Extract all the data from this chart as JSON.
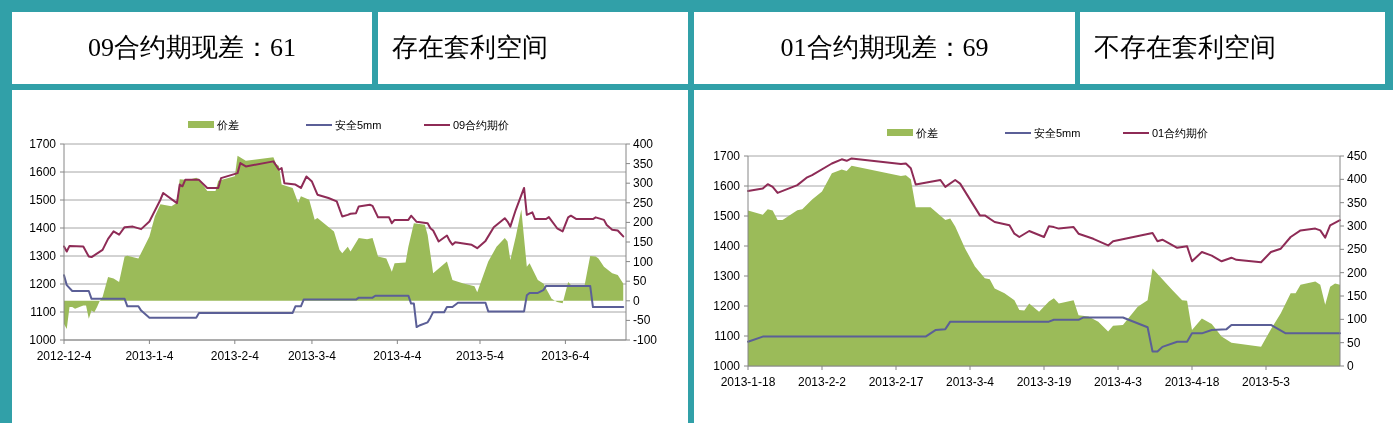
{
  "chart_data": [
    {
      "type": "area",
      "title": "09合约期现差：61",
      "subtitle": "存在套利空间",
      "legend": "top",
      "grid": "y",
      "xlim": [
        "2012-12-04",
        "2013-06-26"
      ],
      "xticks": [
        {
          "value": "2012-12-04",
          "label": "2012-12-4"
        },
        {
          "value": "2013-01-04",
          "label": "2013-1-4"
        },
        {
          "value": "2013-02-04",
          "label": "2013-2-4"
        },
        {
          "value": "2013-03-04",
          "label": "2013-3-4"
        },
        {
          "value": "2013-04-04",
          "label": "2013-4-4"
        },
        {
          "value": "2013-05-04",
          "label": "2013-5-4"
        },
        {
          "value": "2013-06-04",
          "label": "2013-6-4"
        }
      ],
      "ylim": [
        1000,
        1700
      ],
      "yticks": [
        1000,
        1100,
        1200,
        1300,
        1400,
        1500,
        1600,
        1700
      ],
      "y2lim": [
        -100,
        400
      ],
      "y2ticks": [
        -100,
        -50,
        0,
        50,
        100,
        150,
        200,
        250,
        300,
        350,
        400
      ],
      "series": [
        {
          "name": "价差",
          "axis": "y2",
          "color": "#9bbb59",
          "x": [
            "2012-12-04",
            "2012-12-05",
            "2012-12-06",
            "2012-12-07",
            "2012-12-08",
            "2012-12-11",
            "2012-12-12",
            "2012-12-13",
            "2012-12-14",
            "2012-12-15",
            "2012-12-16",
            "2012-12-17",
            "2012-12-18",
            "2012-12-20",
            "2012-12-22",
            "2012-12-24",
            "2012-12-26",
            "2012-12-27",
            "2012-12-31",
            "2013-01-04",
            "2013-01-06",
            "2013-01-08",
            "2013-01-12",
            "2013-01-14",
            "2013-01-15",
            "2013-01-18",
            "2013-01-21",
            "2013-01-22",
            "2013-01-25",
            "2013-01-28",
            "2013-01-29",
            "2013-02-04",
            "2013-02-05",
            "2013-02-08",
            "2013-02-18",
            "2013-02-19",
            "2013-02-20",
            "2013-02-21",
            "2013-02-25",
            "2013-02-27",
            "2013-02-28",
            "2013-03-03",
            "2013-03-05",
            "2013-03-06",
            "2013-03-12",
            "2013-03-14",
            "2013-03-15",
            "2013-03-17",
            "2013-03-18",
            "2013-03-21",
            "2013-03-24",
            "2013-03-26",
            "2013-03-28",
            "2013-03-31",
            "2013-04-02",
            "2013-04-03",
            "2013-04-07",
            "2013-04-08",
            "2013-04-10",
            "2013-04-14",
            "2013-04-15",
            "2013-04-17",
            "2013-04-22",
            "2013-04-24",
            "2013-04-28",
            "2013-05-02",
            "2013-05-03",
            "2013-05-07",
            "2013-05-10",
            "2013-05-13",
            "2013-05-14",
            "2013-05-15",
            "2013-05-17",
            "2013-05-19",
            "2013-05-21",
            "2013-05-22",
            "2013-05-25",
            "2013-05-27",
            "2013-05-30",
            "2013-06-01",
            "2013-06-03",
            "2013-06-05",
            "2013-06-06",
            "2013-06-11",
            "2013-06-13",
            "2013-06-15",
            "2013-06-16",
            "2013-06-18",
            "2013-06-21",
            "2013-06-23",
            "2013-06-25"
          ],
          "values": [
            -59,
            -72,
            -16,
            -16,
            -20,
            -12,
            -12,
            -46,
            -25,
            -29,
            -16,
            0,
            10,
            61,
            57,
            48,
            113,
            115,
            108,
            164,
            216,
            246,
            241,
            250,
            310,
            308,
            314,
            310,
            280,
            280,
            306,
            318,
            370,
            357,
            366,
            349,
            344,
            297,
            288,
            250,
            267,
            258,
            207,
            211,
            177,
            130,
            121,
            138,
            126,
            160,
            157,
            160,
            113,
            108,
            74,
            96,
            98,
            138,
            198,
            194,
            168,
            70,
            100,
            53,
            44,
            37,
            22,
            100,
            138,
            160,
            151,
            104,
            164,
            233,
            87,
            96,
            53,
            44,
            5,
            -3,
            -6,
            48,
            40,
            40,
            114,
            113,
            108,
            87,
            70,
            66,
            44
          ]
        },
        {
          "name": "安全5mm",
          "type": "line",
          "axis": "y2",
          "color": "#5b5f97",
          "x": [
            "2012-12-04",
            "2012-12-05",
            "2012-12-07",
            "2012-12-13",
            "2012-12-14",
            "2012-12-26",
            "2012-12-27",
            "2012-12-31",
            "2013-01-01",
            "2013-01-04",
            "2013-01-21",
            "2013-01-22",
            "2013-02-25",
            "2013-02-26",
            "2013-02-28",
            "2013-03-01",
            "2013-03-20",
            "2013-03-21",
            "2013-03-26",
            "2013-03-27",
            "2013-04-08",
            "2013-04-09",
            "2013-04-10",
            "2013-04-11",
            "2013-04-12",
            "2013-04-15",
            "2013-04-16",
            "2013-04-17",
            "2013-04-21",
            "2013-04-22",
            "2013-04-24",
            "2013-04-26",
            "2013-05-06",
            "2013-05-07",
            "2013-05-20",
            "2013-05-21",
            "2013-05-22",
            "2013-05-25",
            "2013-05-27",
            "2013-05-28",
            "2013-06-13",
            "2013-06-14",
            "2013-06-25"
          ],
          "values": [
            65,
            40,
            25,
            25,
            5,
            5,
            -14,
            -14,
            -25,
            -43,
            -43,
            -31,
            -31,
            -14,
            -14,
            3,
            3,
            8,
            8,
            13,
            13,
            -7,
            -7,
            -67,
            -63,
            -55,
            -43,
            -29,
            -29,
            -16,
            -16,
            -5,
            -5,
            -27,
            -27,
            14,
            20,
            20,
            27,
            38,
            38,
            -16,
            -16
          ]
        },
        {
          "name": "09合约期价",
          "type": "line",
          "axis": "y",
          "color": "#8e2b56",
          "x": [
            "2012-12-04",
            "2012-12-05",
            "2012-12-06",
            "2012-12-11",
            "2012-12-13",
            "2012-12-14",
            "2012-12-18",
            "2012-12-20",
            "2012-12-22",
            "2012-12-24",
            "2012-12-26",
            "2012-12-29",
            "2013-01-01",
            "2013-01-04",
            "2013-01-08",
            "2013-01-09",
            "2013-01-14",
            "2013-01-15",
            "2013-01-16",
            "2013-01-17",
            "2013-01-22",
            "2013-01-25",
            "2013-01-29",
            "2013-01-30",
            "2013-02-05",
            "2013-02-06",
            "2013-02-08",
            "2013-02-18",
            "2013-02-20",
            "2013-02-21",
            "2013-02-22",
            "2013-02-26",
            "2013-02-28",
            "2013-03-02",
            "2013-03-04",
            "2013-03-06",
            "2013-03-10",
            "2013-03-13",
            "2013-03-15",
            "2013-03-17",
            "2013-03-18",
            "2013-03-20",
            "2013-03-21",
            "2013-03-25",
            "2013-03-26",
            "2013-03-28",
            "2013-04-01",
            "2013-04-02",
            "2013-04-03",
            "2013-04-08",
            "2013-04-09",
            "2013-04-11",
            "2013-04-15",
            "2013-04-16",
            "2013-04-17",
            "2013-04-19",
            "2013-04-22",
            "2013-04-23",
            "2013-04-24",
            "2013-04-25",
            "2013-05-01",
            "2013-05-03",
            "2013-05-06",
            "2013-05-09",
            "2013-05-13",
            "2013-05-14",
            "2013-05-15",
            "2013-05-17",
            "2013-05-20",
            "2013-05-21",
            "2013-05-23",
            "2013-05-24",
            "2013-05-28",
            "2013-05-29",
            "2013-06-01",
            "2013-06-03",
            "2013-06-05",
            "2013-06-06",
            "2013-06-08",
            "2013-06-14",
            "2013-06-15",
            "2013-06-18",
            "2013-06-19",
            "2013-06-21",
            "2013-06-23",
            "2013-06-25"
          ],
          "values": [
            1334,
            1316,
            1336,
            1334,
            1298,
            1296,
            1322,
            1361,
            1388,
            1376,
            1403,
            1405,
            1396,
            1423,
            1501,
            1525,
            1489,
            1555,
            1549,
            1572,
            1572,
            1543,
            1543,
            1578,
            1596,
            1632,
            1620,
            1638,
            1608,
            1614,
            1560,
            1555,
            1543,
            1584,
            1566,
            1519,
            1507,
            1495,
            1441,
            1447,
            1451,
            1453,
            1477,
            1483,
            1479,
            1438,
            1438,
            1417,
            1429,
            1429,
            1444,
            1422,
            1417,
            1399,
            1391,
            1352,
            1373,
            1354,
            1340,
            1349,
            1340,
            1328,
            1354,
            1403,
            1435,
            1423,
            1405,
            1465,
            1543,
            1447,
            1456,
            1432,
            1432,
            1439,
            1399,
            1388,
            1438,
            1444,
            1432,
            1432,
            1438,
            1429,
            1411,
            1394,
            1391,
            1370
          ]
        }
      ]
    },
    {
      "type": "area",
      "title": "01合约期现差：69",
      "subtitle": "不存在套利空间",
      "legend": "top",
      "grid": "y",
      "xlim": [
        "2013-01-18",
        "2013-05-18"
      ],
      "xticks": [
        {
          "value": "2013-01-18",
          "label": "2013-1-18"
        },
        {
          "value": "2013-02-02",
          "label": "2013-2-2"
        },
        {
          "value": "2013-02-17",
          "label": "2013-2-17"
        },
        {
          "value": "2013-03-04",
          "label": "2013-3-4"
        },
        {
          "value": "2013-03-19",
          "label": "2013-3-19"
        },
        {
          "value": "2013-04-03",
          "label": "2013-4-3"
        },
        {
          "value": "2013-04-18",
          "label": "2013-4-18"
        },
        {
          "value": "2013-05-03",
          "label": "2013-5-3"
        }
      ],
      "ylim": [
        1000,
        1700
      ],
      "yticks": [
        1000,
        1100,
        1200,
        1300,
        1400,
        1500,
        1600,
        1700
      ],
      "y2lim": [
        0,
        450
      ],
      "y2ticks": [
        0,
        50,
        100,
        150,
        200,
        250,
        300,
        350,
        400,
        450
      ],
      "series": [
        {
          "name": "价差",
          "axis": "y2",
          "color": "#9bbb59",
          "x": [
            "2013-01-18",
            "2013-01-21",
            "2013-01-22",
            "2013-01-23",
            "2013-01-24",
            "2013-01-25",
            "2013-01-28",
            "2013-01-29",
            "2013-01-31",
            "2013-02-02",
            "2013-02-04",
            "2013-02-06",
            "2013-02-07",
            "2013-02-08",
            "2013-02-18",
            "2013-02-19",
            "2013-02-20",
            "2013-02-21",
            "2013-02-24",
            "2013-02-25",
            "2013-02-27",
            "2013-02-28",
            "2013-03-01",
            "2013-03-03",
            "2013-03-05",
            "2013-03-07",
            "2013-03-08",
            "2013-03-09",
            "2013-03-11",
            "2013-03-13",
            "2013-03-14",
            "2013-03-15",
            "2013-03-16",
            "2013-03-18",
            "2013-03-20",
            "2013-03-21",
            "2013-03-22",
            "2013-03-25",
            "2013-03-26",
            "2013-03-28",
            "2013-03-30",
            "2013-04-01",
            "2013-04-02",
            "2013-04-04",
            "2013-04-07",
            "2013-04-09",
            "2013-04-10",
            "2013-04-14",
            "2013-04-16",
            "2013-04-17",
            "2013-04-18",
            "2013-04-20",
            "2013-04-22",
            "2013-04-24",
            "2013-04-26",
            "2013-05-02",
            "2013-05-04",
            "2013-05-06",
            "2013-05-08",
            "2013-05-09",
            "2013-05-10",
            "2013-05-13",
            "2013-05-14",
            "2013-05-15",
            "2013-05-16",
            "2013-05-17",
            "2013-05-18"
          ],
          "values": [
            333,
            324,
            336,
            333,
            313,
            313,
            334,
            336,
            357,
            374,
            413,
            421,
            418,
            429,
            407,
            409,
            400,
            340,
            340,
            331,
            313,
            316,
            299,
            252,
            213,
            188,
            186,
            166,
            156,
            141,
            120,
            119,
            134,
            116,
            138,
            145,
            134,
            141,
            109,
            106,
            95,
            74,
            86,
            88,
            127,
            141,
            209,
            163,
            141,
            140,
            77,
            102,
            90,
            63,
            50,
            41,
            79,
            113,
            156,
            156,
            174,
            181,
            174,
            131,
            170,
            177,
            174
          ]
        },
        {
          "name": "安全5mm",
          "type": "line",
          "axis": "y2",
          "color": "#5b5f97",
          "x": [
            "2013-01-18",
            "2013-01-21",
            "2013-02-23",
            "2013-02-25",
            "2013-02-27",
            "2013-02-28",
            "2013-03-20",
            "2013-03-21",
            "2013-03-26",
            "2013-03-27",
            "2013-04-04",
            "2013-04-09",
            "2013-04-10",
            "2013-04-11",
            "2013-04-12",
            "2013-04-15",
            "2013-04-17",
            "2013-04-18",
            "2013-04-20",
            "2013-04-22",
            "2013-04-25",
            "2013-04-26",
            "2013-05-04",
            "2013-05-07",
            "2013-05-18"
          ],
          "values": [
            52,
            63,
            63,
            77,
            79,
            95,
            95,
            99,
            99,
            104,
            104,
            83,
            31,
            31,
            41,
            52,
            52,
            70,
            70,
            77,
            79,
            88,
            88,
            70,
            70
          ]
        },
        {
          "name": "01合约期价",
          "type": "line",
          "axis": "y",
          "color": "#8e2b56",
          "x": [
            "2013-01-18",
            "2013-01-21",
            "2013-01-22",
            "2013-01-23",
            "2013-01-24",
            "2013-01-28",
            "2013-01-30",
            "2013-01-31",
            "2013-02-04",
            "2013-02-06",
            "2013-02-07",
            "2013-02-08",
            "2013-02-18",
            "2013-02-19",
            "2013-02-20",
            "2013-02-21",
            "2013-02-26",
            "2013-02-27",
            "2013-03-01",
            "2013-03-02",
            "2013-03-06",
            "2013-03-07",
            "2013-03-09",
            "2013-03-12",
            "2013-03-13",
            "2013-03-14",
            "2013-03-16",
            "2013-03-19",
            "2013-03-20",
            "2013-03-21",
            "2013-03-22",
            "2013-03-25",
            "2013-03-26",
            "2013-03-29",
            "2013-04-01",
            "2013-04-02",
            "2013-04-10",
            "2013-04-11",
            "2013-04-12",
            "2013-04-15",
            "2013-04-17",
            "2013-04-18",
            "2013-04-20",
            "2013-04-22",
            "2013-04-24",
            "2013-04-26",
            "2013-04-27",
            "2013-05-02",
            "2013-05-04",
            "2013-05-06",
            "2013-05-08",
            "2013-05-10",
            "2013-05-13",
            "2013-05-14",
            "2013-05-15",
            "2013-05-16",
            "2013-05-18"
          ],
          "values": [
            1583,
            1592,
            1606,
            1597,
            1577,
            1603,
            1629,
            1636,
            1675,
            1689,
            1684,
            1692,
            1673,
            1675,
            1659,
            1605,
            1620,
            1597,
            1620,
            1608,
            1502,
            1502,
            1480,
            1469,
            1441,
            1430,
            1450,
            1430,
            1466,
            1463,
            1458,
            1463,
            1441,
            1424,
            1402,
            1416,
            1443,
            1416,
            1421,
            1394,
            1399,
            1349,
            1380,
            1368,
            1349,
            1361,
            1354,
            1346,
            1380,
            1391,
            1430,
            1452,
            1458,
            1452,
            1428,
            1469,
            1486
          ]
        }
      ]
    }
  ]
}
